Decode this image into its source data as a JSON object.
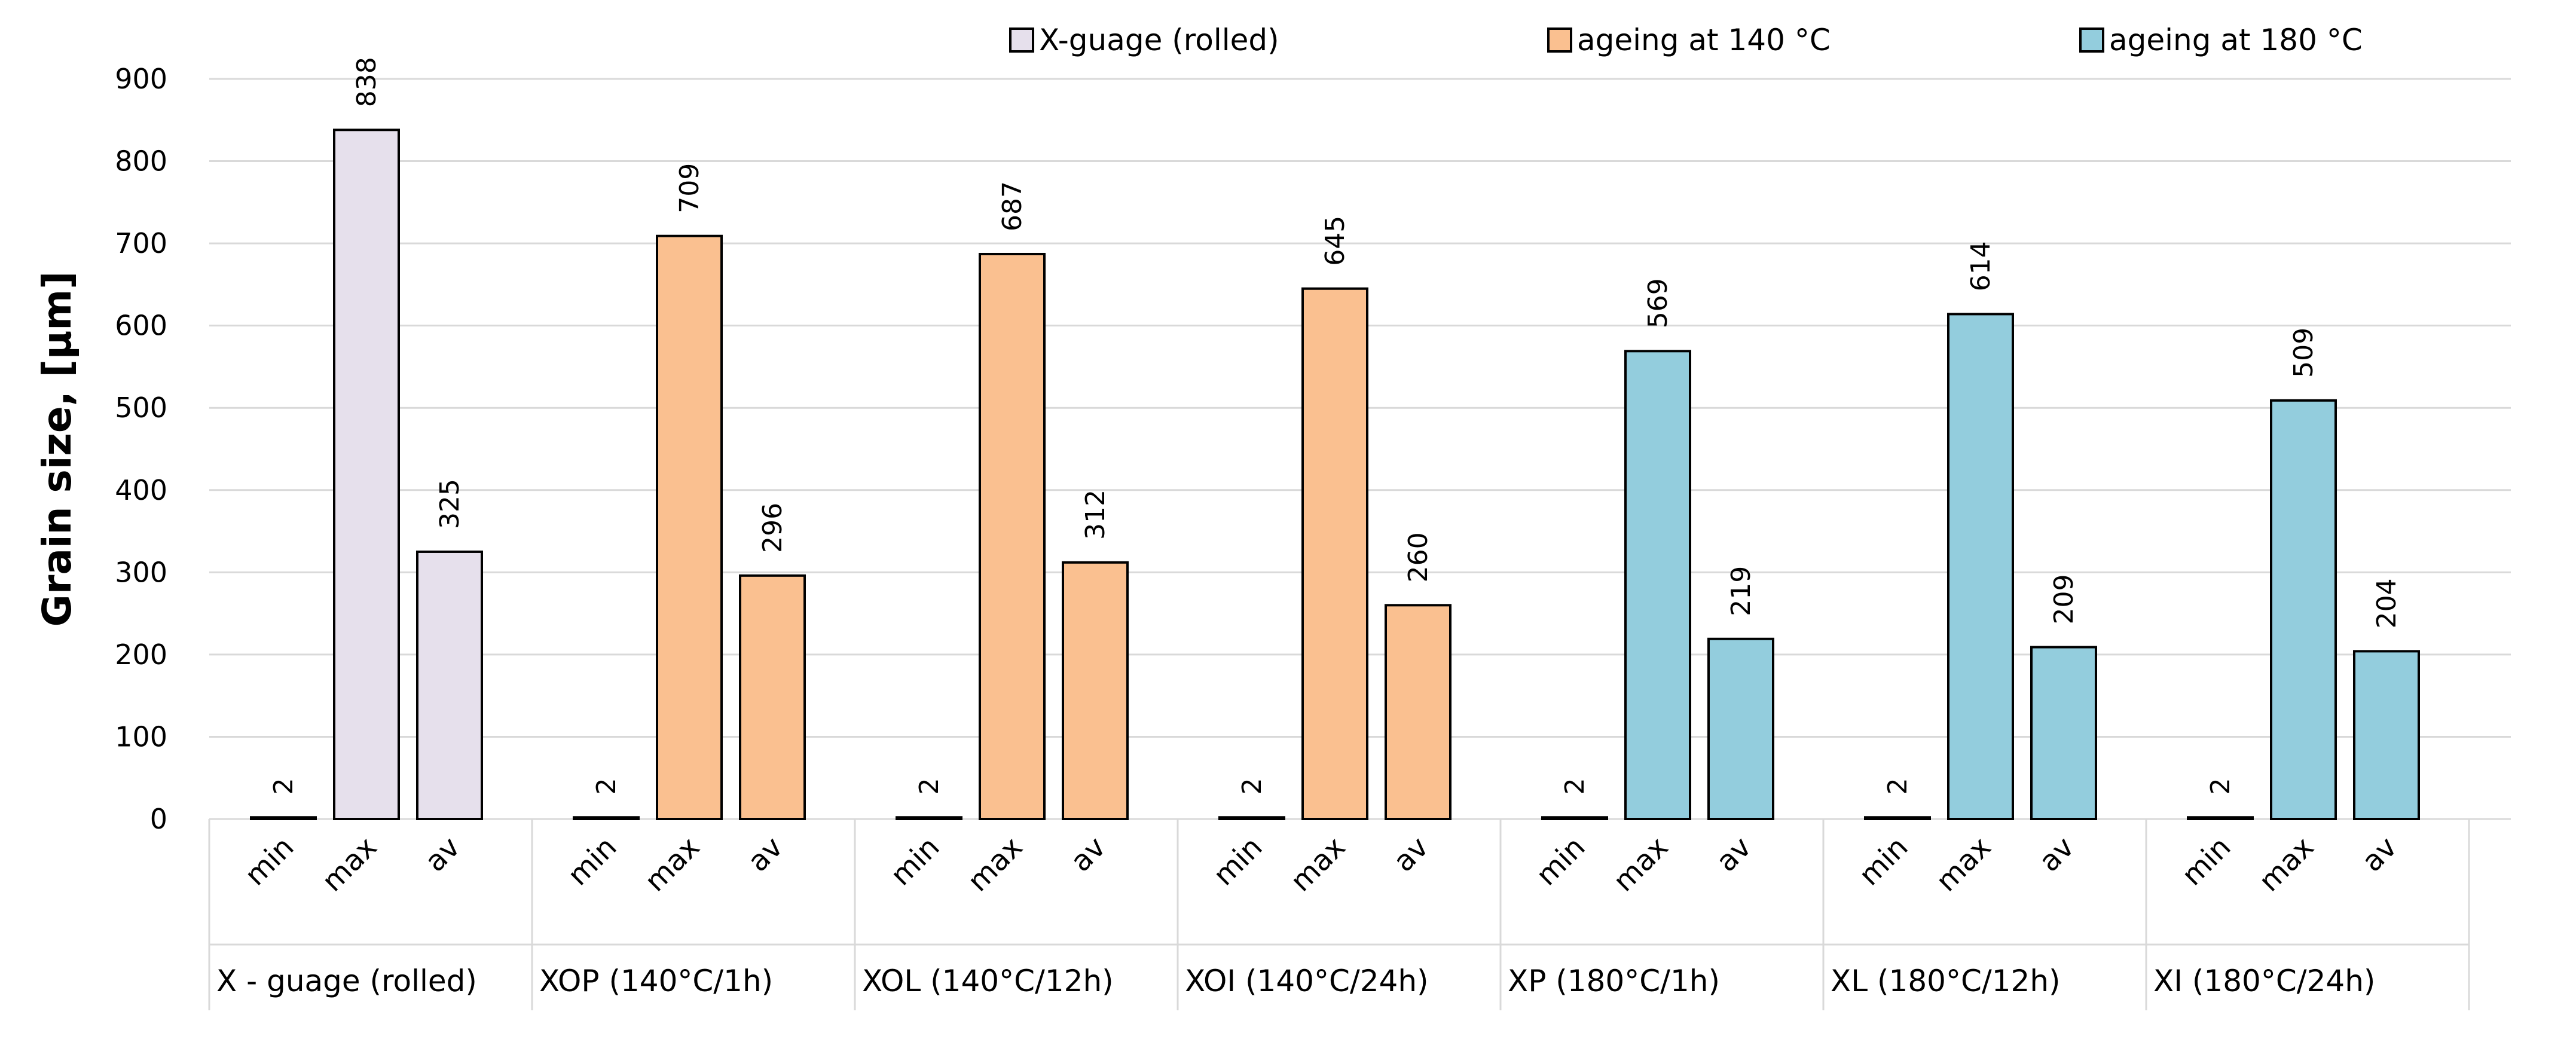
{
  "chart_data": {
    "type": "bar",
    "ylabel": "Grain size, [µm]",
    "xlabel": "",
    "ylim": [
      0,
      900
    ],
    "yticks": [
      "0",
      "100",
      "200",
      "300",
      "400",
      "500",
      "600",
      "700",
      "800",
      "900"
    ],
    "grid": "horizontal",
    "legend": {
      "placement": "top",
      "entries": [
        {
          "label": "X-guage (rolled)",
          "color": "#e6e0ec"
        },
        {
          "label": "ageing at 140 °C",
          "color": "#fac090"
        },
        {
          "label": "ageing at 180 °C",
          "color": "#93cddd"
        }
      ]
    },
    "subcategories": [
      "min",
      "max",
      "av"
    ],
    "groups": [
      {
        "label": "X - guage (rolled)",
        "series": 0,
        "values": [
          2,
          838,
          325
        ]
      },
      {
        "label": "XOP (140°C/1h)",
        "series": 1,
        "values": [
          2,
          709,
          296
        ]
      },
      {
        "label": "XOL (140°C/12h)",
        "series": 1,
        "values": [
          2,
          687,
          312
        ]
      },
      {
        "label": "XOI (140°C/24h)",
        "series": 1,
        "values": [
          2,
          645,
          260
        ]
      },
      {
        "label": "XP (180°C/1h)",
        "series": 2,
        "values": [
          2,
          569,
          219
        ]
      },
      {
        "label": "XL (180°C/12h)",
        "series": 2,
        "values": [
          2,
          614,
          209
        ]
      },
      {
        "label": "XI (180°C/24h)",
        "series": 2,
        "values": [
          2,
          509,
          204
        ]
      }
    ]
  }
}
